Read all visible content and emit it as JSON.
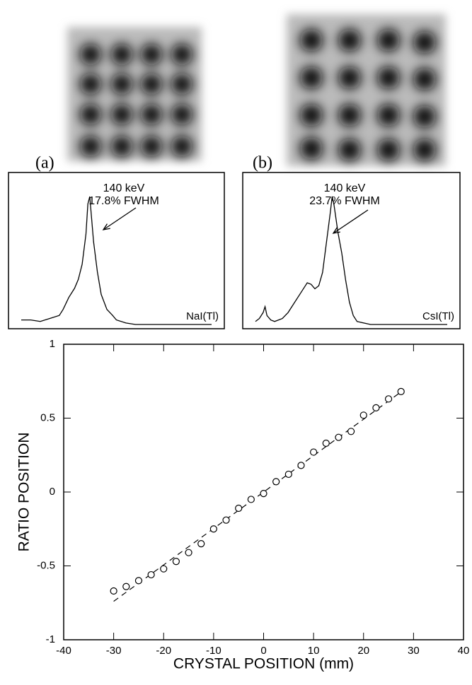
{
  "panels": [
    {
      "label": "(a)"
    },
    {
      "label": "(b)"
    }
  ],
  "chart_data": [
    {
      "type": "line",
      "annotation": [
        "140 keV",
        "17.8% FWHM"
      ],
      "label": "NaI(Tl)",
      "color": "#000000",
      "x": [
        0,
        5,
        10,
        15,
        20,
        22,
        25,
        28,
        30,
        32,
        34,
        35,
        36,
        37,
        38,
        40,
        42,
        45,
        48,
        50,
        55,
        60,
        70,
        80,
        90,
        100
      ],
      "values": [
        3,
        3,
        2,
        4,
        6,
        10,
        18,
        24,
        30,
        40,
        60,
        80,
        85,
        70,
        55,
        35,
        20,
        10,
        6,
        3,
        1,
        0,
        0,
        0,
        0,
        0
      ]
    },
    {
      "type": "line",
      "annotation": [
        "140 keV",
        "23.7% FWHM"
      ],
      "label": "CsI(Tl)",
      "color": "#000000",
      "x": [
        0,
        2,
        4,
        5,
        6,
        8,
        10,
        14,
        17,
        20,
        24,
        27,
        29,
        31,
        33,
        35,
        37,
        39,
        40,
        41,
        43,
        45,
        47,
        49,
        51,
        53,
        60,
        80,
        100
      ],
      "values": [
        2,
        4,
        8,
        12,
        6,
        3,
        2,
        4,
        8,
        14,
        22,
        28,
        27,
        24,
        26,
        35,
        55,
        75,
        86,
        80,
        62,
        48,
        30,
        15,
        6,
        2,
        0,
        0,
        0
      ]
    },
    {
      "type": "scatter",
      "xlabel": "CRYSTAL POSITION (mm)",
      "ylabel": "RATIO POSITION",
      "color": "#000000",
      "x": [
        -30,
        -27.5,
        -25,
        -22.5,
        -20,
        -17.5,
        -15,
        -12.5,
        -10,
        -7.5,
        -5,
        -2.5,
        0,
        2.5,
        5,
        7.5,
        10,
        12.5,
        15,
        17.5,
        20,
        22.5,
        25,
        27.5
      ],
      "values": [
        -0.67,
        -0.64,
        -0.6,
        -0.56,
        -0.52,
        -0.47,
        -0.41,
        -0.35,
        -0.25,
        -0.19,
        -0.11,
        -0.05,
        -0.01,
        0.07,
        0.12,
        0.18,
        0.27,
        0.33,
        0.37,
        0.41,
        0.52,
        0.57,
        0.63,
        0.68
      ],
      "fit": {
        "x": [
          -30,
          28
        ],
        "values": [
          -0.74,
          0.69
        ]
      },
      "xlim": [
        -40,
        40
      ],
      "xticks": [
        -40,
        -30,
        -20,
        -10,
        0,
        10,
        20,
        30,
        40
      ],
      "ylim": [
        -1,
        1
      ],
      "yticks": [
        -1,
        -0.5,
        0,
        0.5,
        1
      ]
    }
  ]
}
